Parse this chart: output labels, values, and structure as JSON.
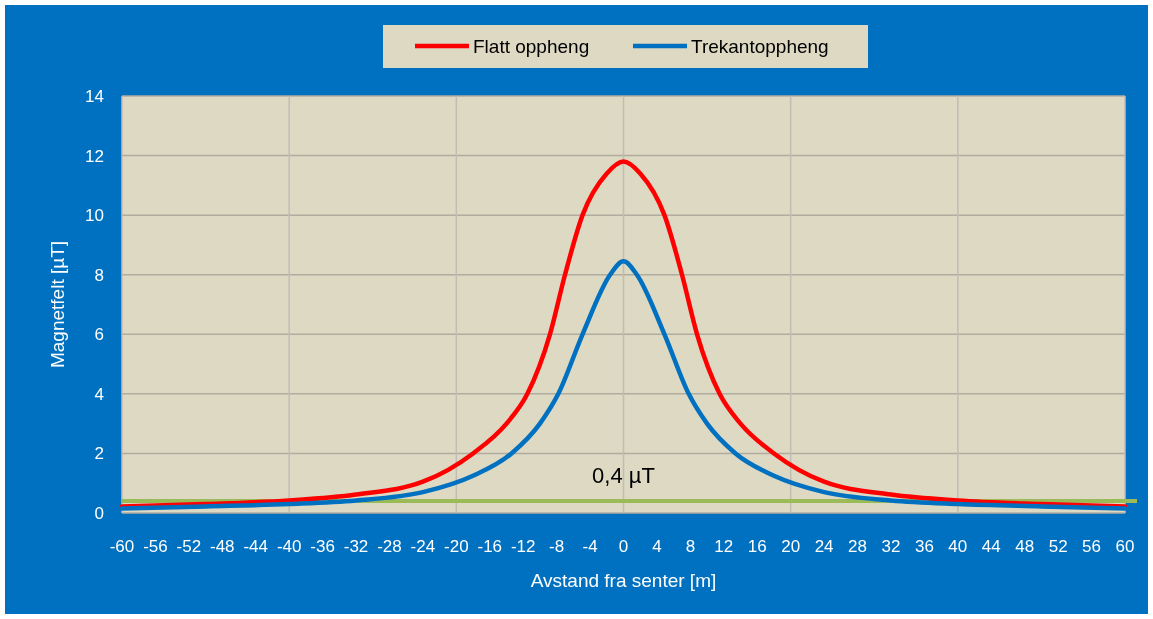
{
  "chart_data": {
    "type": "line",
    "xlabel": "Avstand fra senter [m]",
    "ylabel": "Magnetfelt [µT]",
    "xlim": [
      -60,
      60
    ],
    "xticks": [
      -60,
      -56,
      -52,
      -48,
      -44,
      -40,
      -36,
      -32,
      -28,
      -24,
      -20,
      -16,
      -12,
      -8,
      -4,
      0,
      4,
      8,
      12,
      16,
      20,
      24,
      28,
      32,
      36,
      40,
      44,
      48,
      52,
      56,
      60
    ],
    "ylim": [
      0,
      14
    ],
    "yticks": [
      0,
      2,
      4,
      6,
      8,
      10,
      12,
      14
    ],
    "grid": true,
    "legend": "top",
    "line_style": "solid",
    "marker": "none",
    "series": [
      {
        "name": "Flatt oppheng",
        "color": "#ff0000",
        "x": [
          -60,
          -50,
          -40,
          -32,
          -24,
          -18,
          -14,
          -11.5,
          -8.8,
          -7,
          -4.9,
          -2,
          0,
          2,
          4.9,
          7,
          8.8,
          11.5,
          14,
          18,
          24,
          32,
          40,
          50,
          60
        ],
        "values": [
          0.22,
          0.3,
          0.42,
          0.62,
          1.05,
          2.0,
          3.0,
          4.0,
          6.0,
          8.0,
          10.0,
          11.4,
          11.8,
          11.4,
          10.0,
          8.0,
          6.0,
          4.0,
          3.0,
          2.0,
          1.05,
          0.62,
          0.42,
          0.3,
          0.22
        ]
      },
      {
        "name": "Trekantoppheng",
        "color": "#0070c0",
        "x": [
          -60,
          -50,
          -40,
          -32,
          -24,
          -18,
          -13.4,
          -10,
          -7.8,
          -4.9,
          -1.6,
          0,
          1.6,
          4.9,
          7.8,
          10,
          13.4,
          18,
          24,
          32,
          40,
          50,
          60
        ],
        "values": [
          0.15,
          0.22,
          0.3,
          0.42,
          0.7,
          1.25,
          2.0,
          3.0,
          4.0,
          6.0,
          8.0,
          8.45,
          8.0,
          6.0,
          4.0,
          3.0,
          2.0,
          1.25,
          0.7,
          0.42,
          0.3,
          0.22,
          0.15
        ]
      }
    ],
    "ref_lines": [
      {
        "axis": "y",
        "value": 0.4,
        "label": "0,4 µT",
        "color": "#9bbb59"
      }
    ]
  }
}
